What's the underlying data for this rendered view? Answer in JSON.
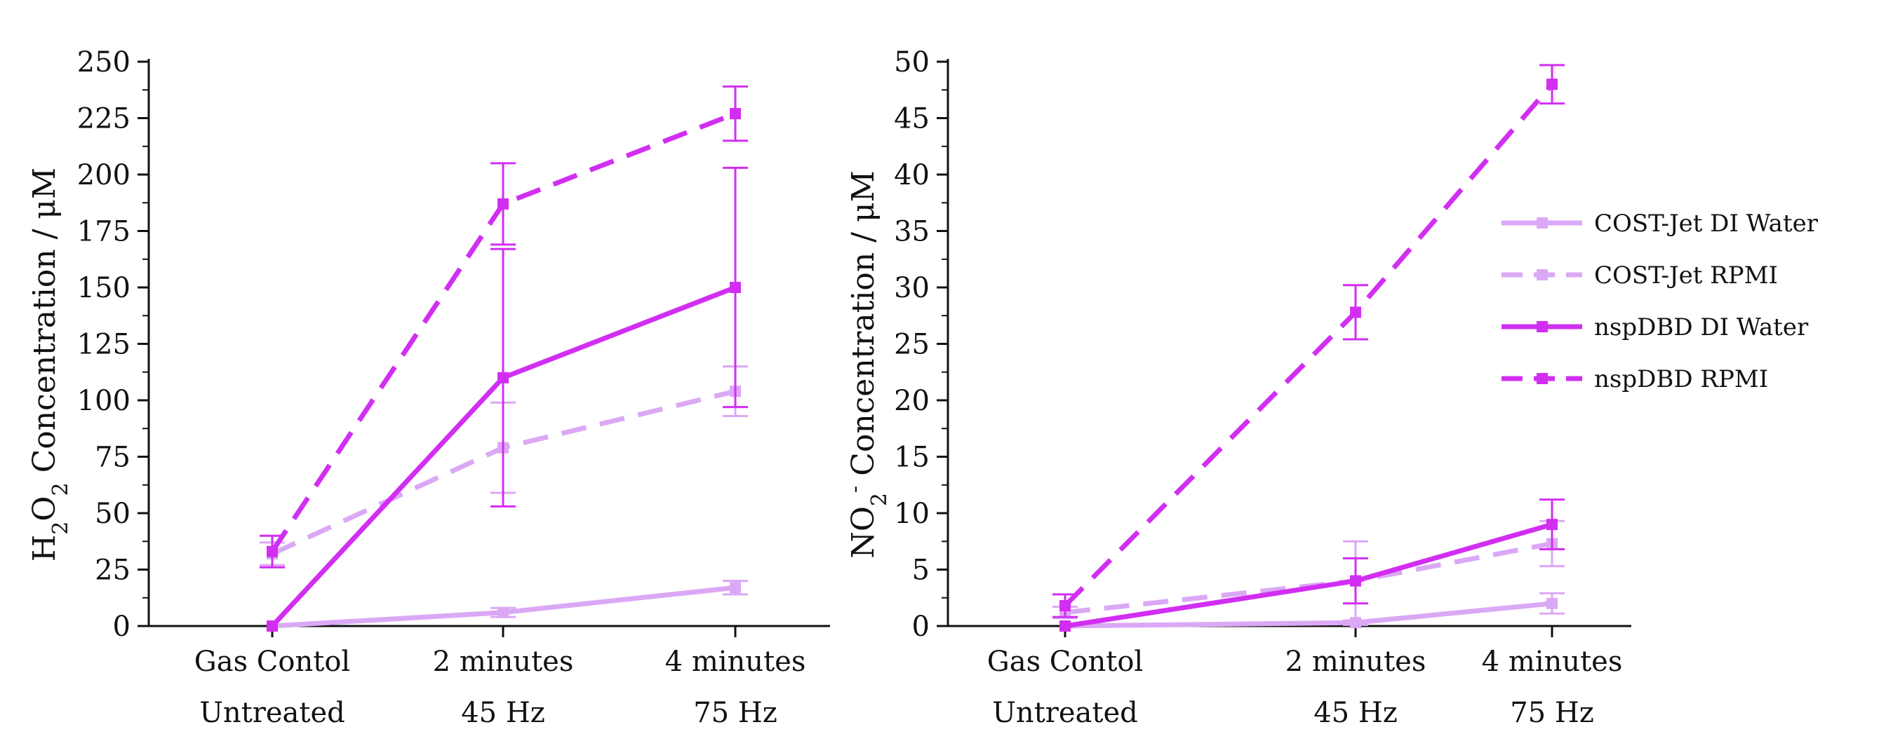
{
  "colors": {
    "light": "#dba8f5",
    "dark": "#d22ef2",
    "axis": "#111111"
  },
  "chart_data": [
    {
      "type": "line",
      "ylabel_main": "H",
      "ylabel_sub1": "2",
      "ylabel_mid": "O",
      "ylabel_sub2": "2",
      "ylabel_tail": " Concentration / μM",
      "categories_line1": [
        "Gas Contol",
        "2 minutes",
        "4 minutes"
      ],
      "categories_line2": [
        "Untreated",
        "45 Hz",
        "75 Hz"
      ],
      "ylim": [
        0,
        250
      ],
      "yticks": [
        "0",
        "25",
        "50",
        "75",
        "100",
        "125",
        "150",
        "175",
        "200",
        "225",
        "250"
      ],
      "series": [
        {
          "name": "COST-Jet DI Water",
          "color": "light",
          "dash": "solid",
          "values": [
            0,
            6,
            17
          ],
          "err": [
            0,
            2,
            3
          ]
        },
        {
          "name": "COST-Jet RPMI",
          "color": "light",
          "dash": "dashed",
          "values": [
            32,
            79,
            104
          ],
          "err": [
            5,
            20,
            11
          ]
        },
        {
          "name": "nspDBD DI Water",
          "color": "dark",
          "dash": "solid",
          "values": [
            0,
            110,
            150
          ],
          "err": [
            0,
            57,
            53
          ]
        },
        {
          "name": "nspDBD RPMI",
          "color": "dark",
          "dash": "dashed",
          "values": [
            33,
            187,
            227
          ],
          "err": [
            7,
            18,
            12
          ]
        }
      ]
    },
    {
      "type": "line",
      "ylabel_main": "NO",
      "ylabel_sub1": "2",
      "ylabel_sup": "-",
      "ylabel_tail": " Concentration / μM",
      "categories_line1": [
        "Gas Contol",
        "2 minutes",
        "4 minutes"
      ],
      "categories_line2": [
        "Untreated",
        "45 Hz",
        "75 Hz"
      ],
      "ylim": [
        0,
        50
      ],
      "yticks": [
        "0",
        "5",
        "10",
        "15",
        "20",
        "25",
        "30",
        "35",
        "40",
        "45",
        "50"
      ],
      "series": [
        {
          "name": "COST-Jet DI Water",
          "color": "light",
          "dash": "solid",
          "values": [
            0,
            0.3,
            2
          ],
          "err": [
            0,
            0.2,
            0.9
          ]
        },
        {
          "name": "COST-Jet RPMI",
          "color": "light",
          "dash": "dashed",
          "values": [
            1.2,
            4,
            7.3
          ],
          "err": [
            0.5,
            3.5,
            2
          ]
        },
        {
          "name": "nspDBD DI Water",
          "color": "dark",
          "dash": "solid",
          "values": [
            0,
            4,
            9
          ],
          "err": [
            0,
            2,
            2.2
          ]
        },
        {
          "name": "nspDBD RPMI",
          "color": "dark",
          "dash": "dashed",
          "values": [
            1.8,
            27.8,
            48
          ],
          "err": [
            1,
            2.4,
            1.7
          ]
        }
      ],
      "legend": [
        {
          "name": "COST-Jet DI Water",
          "color": "light",
          "dash": "solid"
        },
        {
          "name": "COST-Jet RPMI",
          "color": "light",
          "dash": "dashed"
        },
        {
          "name": "nspDBD DI Water",
          "color": "dark",
          "dash": "solid"
        },
        {
          "name": "nspDBD RPMI",
          "color": "dark",
          "dash": "dashed"
        }
      ]
    }
  ]
}
